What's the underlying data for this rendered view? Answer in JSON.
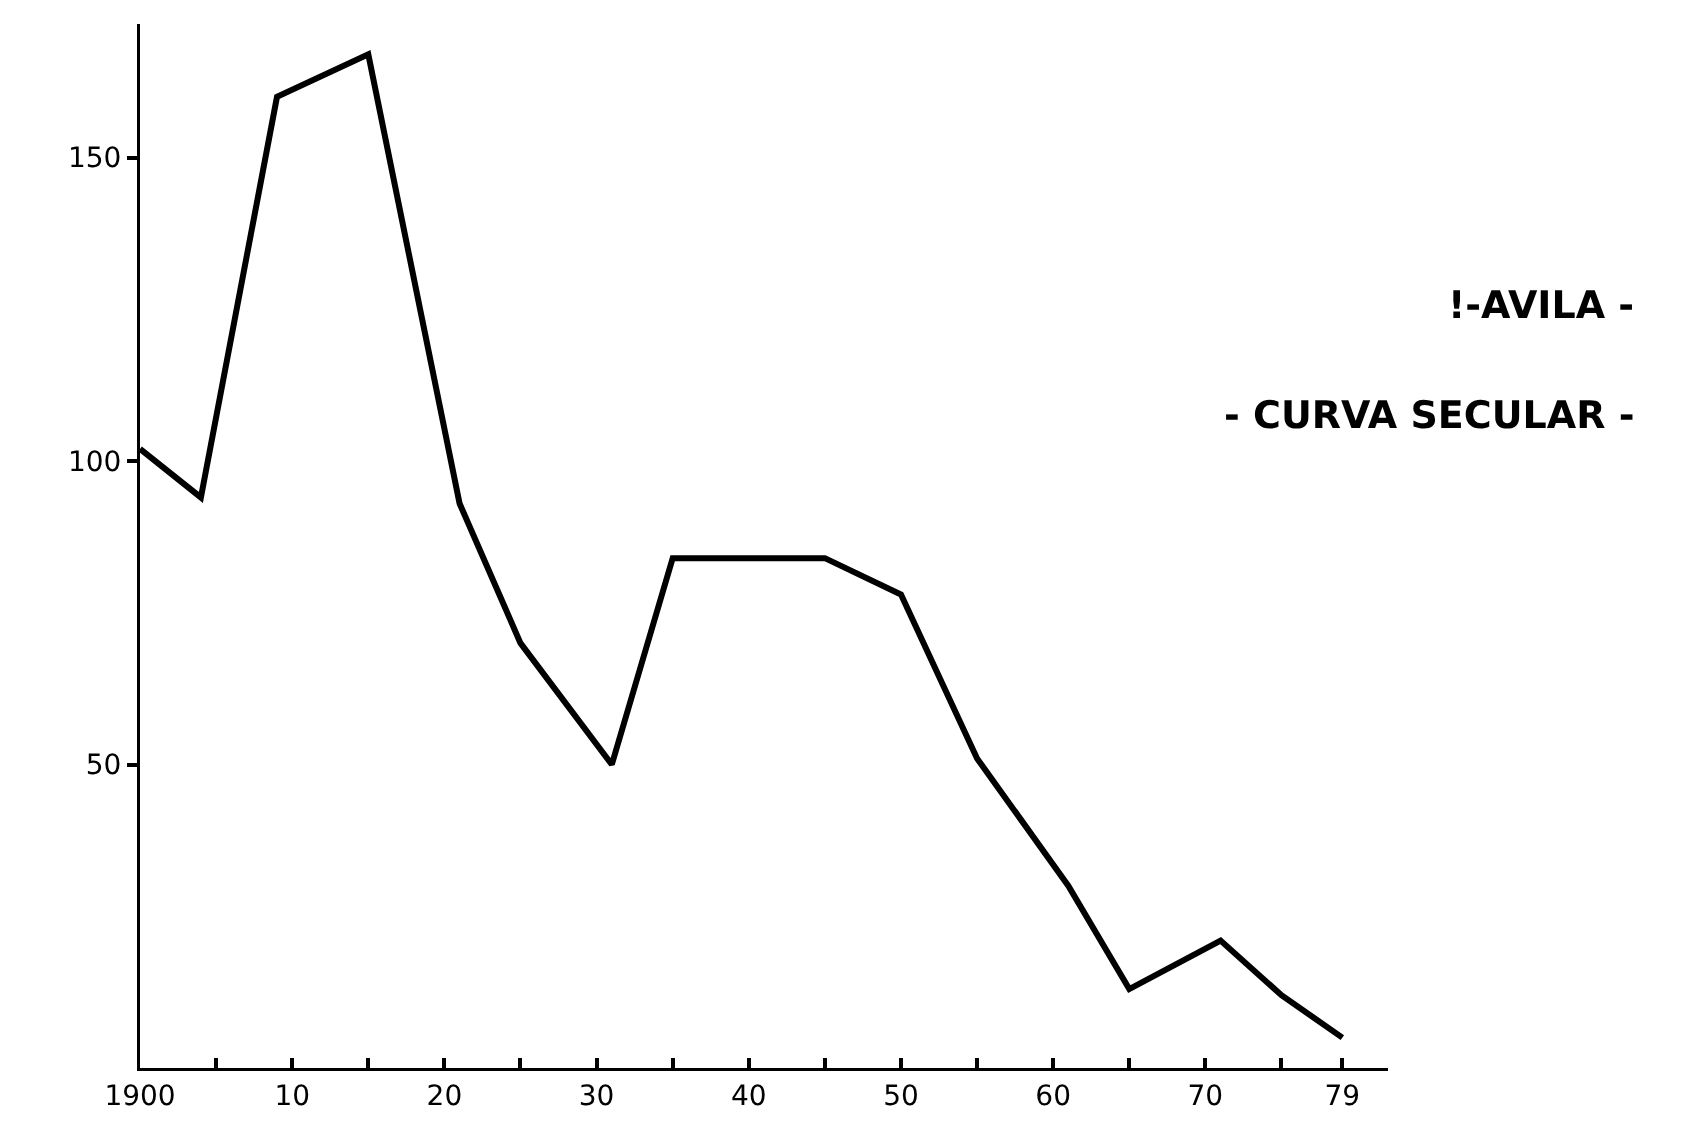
{
  "chart_data": {
    "type": "line",
    "x": [
      1900,
      1904,
      1909,
      1915,
      1921,
      1925,
      1931,
      1935,
      1945,
      1950,
      1955,
      1961,
      1965,
      1971,
      1975,
      1979
    ],
    "series": [
      {
        "color": "#000000",
        "values": [
          102,
          94,
          160,
          167,
          93,
          70,
          50,
          84,
          84,
          78,
          51,
          30,
          13,
          21,
          12,
          5
        ]
      }
    ],
    "xlim": [
      1900,
      1982
    ],
    "ylim": [
      0,
      172
    ],
    "xticks": [
      {
        "value": 1900,
        "label": "1900"
      },
      {
        "value": 1905,
        "label": null
      },
      {
        "value": 1910,
        "label": "10"
      },
      {
        "value": 1915,
        "label": null
      },
      {
        "value": 1920,
        "label": "20"
      },
      {
        "value": 1925,
        "label": null
      },
      {
        "value": 1930,
        "label": "30"
      },
      {
        "value": 1935,
        "label": null
      },
      {
        "value": 1940,
        "label": "40"
      },
      {
        "value": 1945,
        "label": null
      },
      {
        "value": 1950,
        "label": "50"
      },
      {
        "value": 1955,
        "label": null
      },
      {
        "value": 1960,
        "label": "60"
      },
      {
        "value": 1965,
        "label": null
      },
      {
        "value": 1970,
        "label": "70"
      },
      {
        "value": 1975,
        "label": null
      },
      {
        "value": 1979,
        "label": "79"
      }
    ],
    "yticks": [
      50,
      100,
      150
    ],
    "grid": false,
    "legend": false,
    "marker": "none",
    "line_style": "solid",
    "annotations": [
      "!-AVILA -",
      "- CURVA SECULAR -"
    ]
  }
}
